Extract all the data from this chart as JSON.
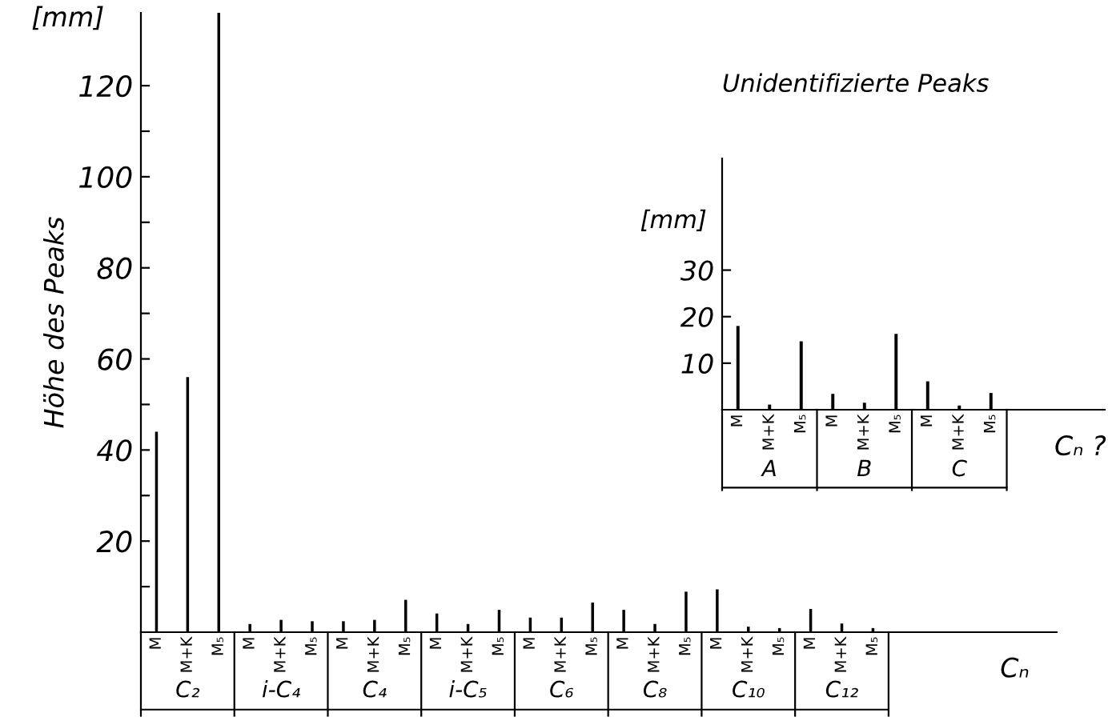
{
  "chart_data": [
    {
      "type": "bar",
      "ylabel": "Höhe des Peaks",
      "xlabel": "Cₙ",
      "categories": [
        "M",
        "M+K",
        "M₅",
        "M",
        "M+K",
        "M₅",
        "M",
        "M+K",
        "M₅",
        "M",
        "M+K",
        "M₅",
        "M",
        "M+K",
        "M₅",
        "M",
        "M+K",
        "M₅",
        "M",
        "M+K",
        "M₅",
        "M",
        "M+K",
        "M₅"
      ],
      "values": [
        44,
        56,
        136,
        1.8,
        2.7,
        2.4,
        2.4,
        2.7,
        7.1,
        4.1,
        1.8,
        4.9,
        3.2,
        3.2,
        6.5,
        4.9,
        1.8,
        8.9,
        9.4,
        1.2,
        0.9,
        5.1,
        1.9,
        0.9
      ],
      "color": "#000000",
      "ylim": [
        0,
        136
      ],
      "yticks": [
        {
          "value": 10,
          "label": null
        },
        20,
        {
          "value": 30,
          "label": null
        },
        40,
        {
          "value": 50,
          "label": null
        },
        60,
        {
          "value": 70,
          "label": null
        },
        80,
        {
          "value": 90,
          "label": null
        },
        100,
        {
          "value": 110,
          "label": null
        },
        120
      ],
      "annotations": [
        "[mm]",
        "C₂",
        "i-C₄",
        "C₄",
        "i-C₅",
        "C₆",
        "C₈",
        "C₁₀",
        "C₁₂"
      ],
      "grid": false,
      "legend": false
    },
    {
      "type": "bar",
      "title": "Unidentifizierte Peaks",
      "xlabel": "Cₙ ?",
      "categories": [
        "M",
        "M+K",
        "M₅",
        "M",
        "M+K",
        "M₅",
        "M",
        "M+K",
        "M₅"
      ],
      "values": [
        18,
        1.1,
        14.7,
        3.4,
        1.5,
        16.3,
        6.1,
        0.9,
        3.6
      ],
      "color": "#000000",
      "ylim": [
        0,
        54
      ],
      "yticks": [
        10,
        20,
        30
      ],
      "annotations": [
        "[mm]",
        "A",
        "B",
        "C"
      ],
      "grid": false,
      "legend": false
    }
  ]
}
